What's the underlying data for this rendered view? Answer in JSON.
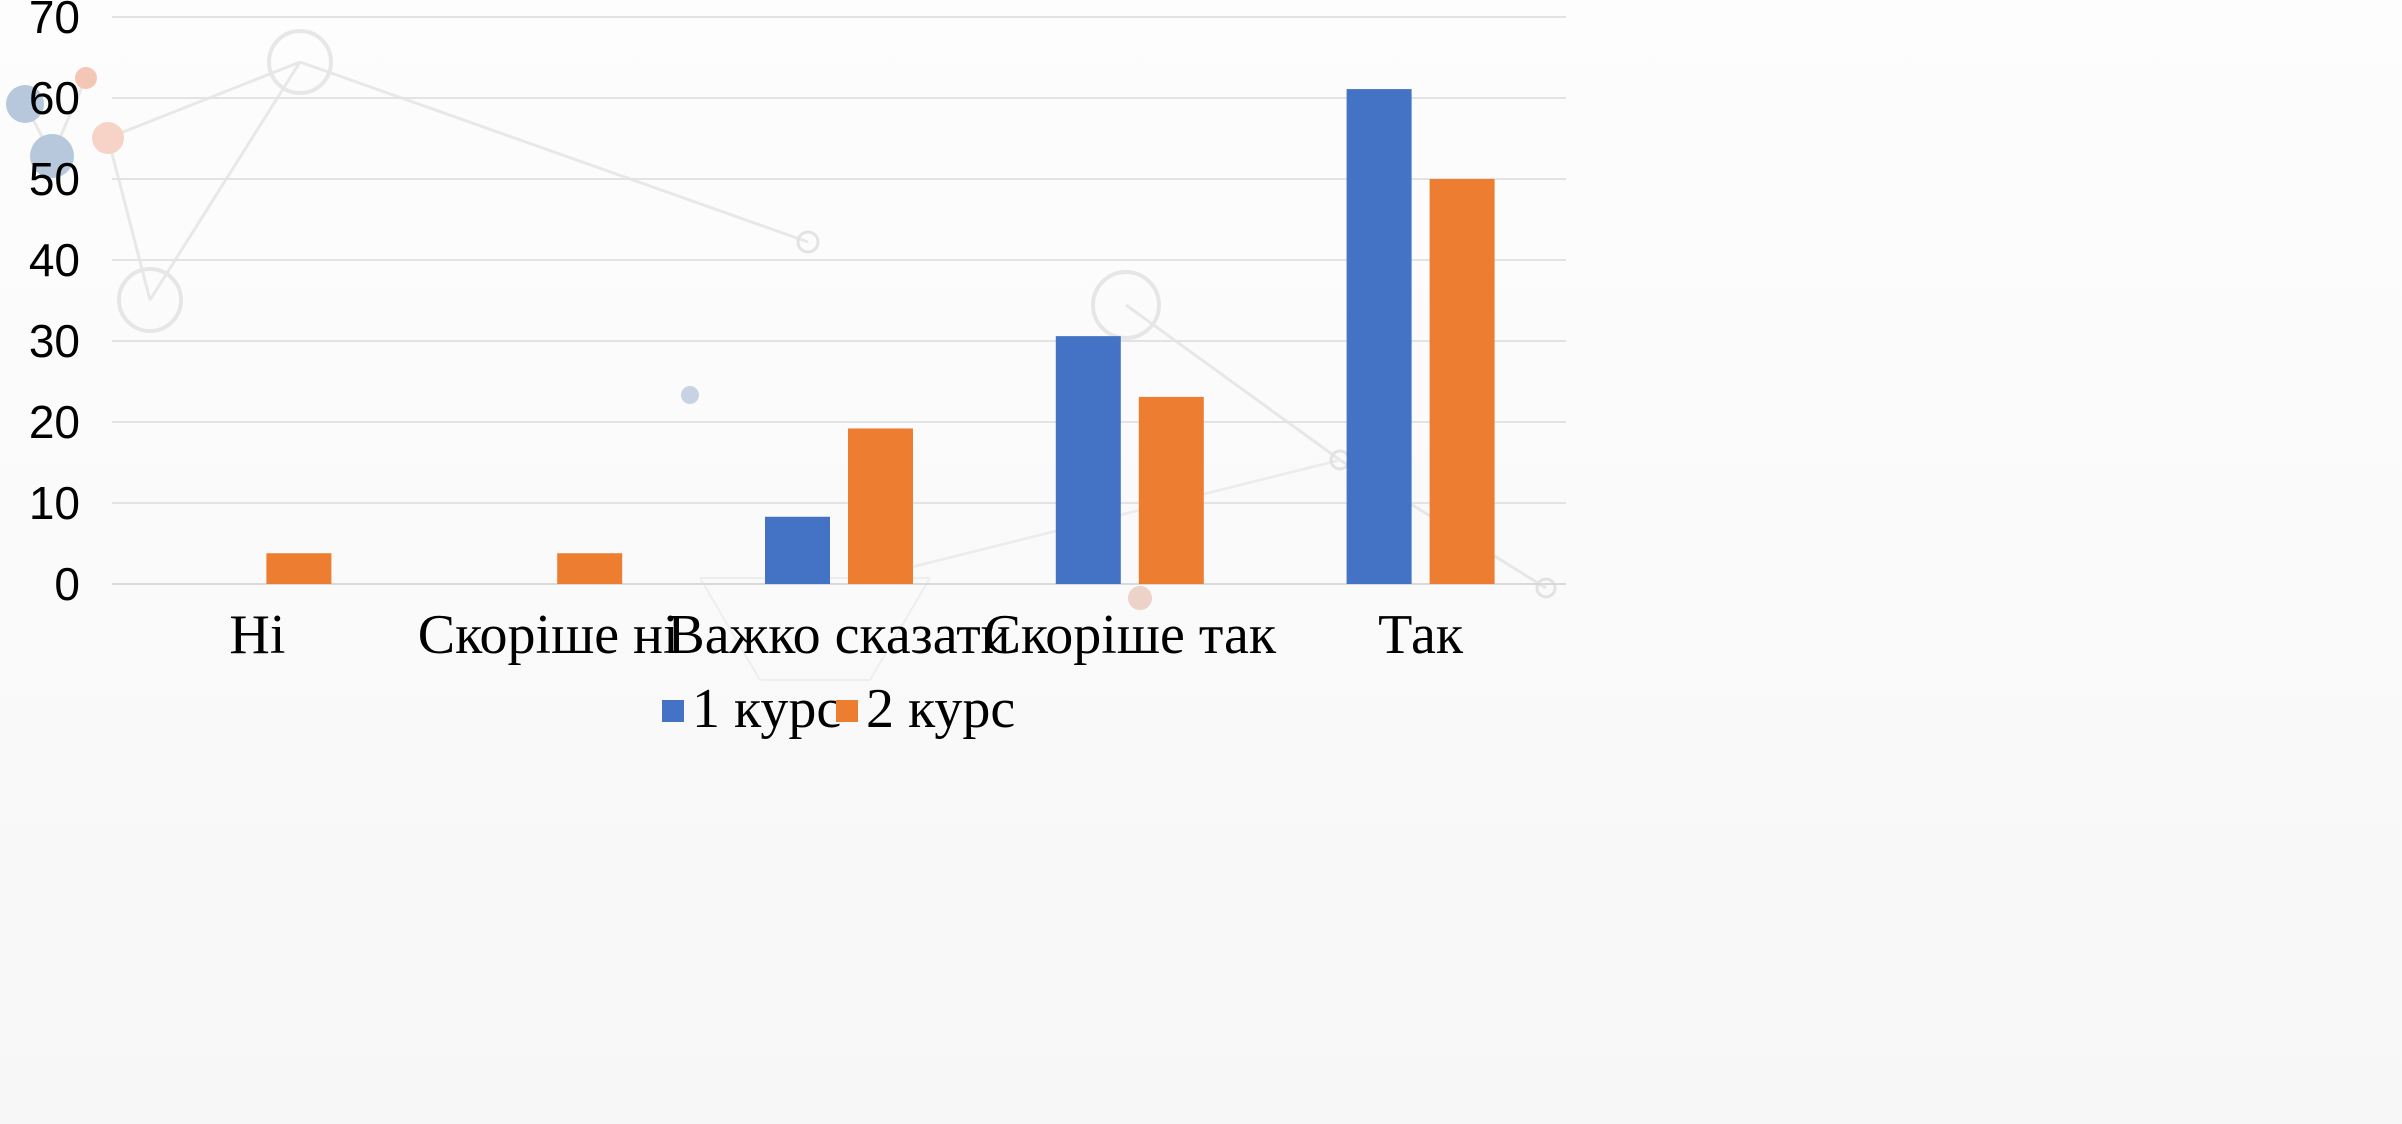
{
  "chart_data": {
    "type": "bar",
    "categories": [
      "Ні",
      "Скоріше ні",
      "Важко сказати",
      "Скоріше так",
      "Так"
    ],
    "series": [
      {
        "name": "1 курс",
        "color": "#4472C4",
        "values": [
          0,
          0,
          8.3,
          30.6,
          61.1
        ]
      },
      {
        "name": "2 курс",
        "color": "#ED7D31",
        "values": [
          3.8,
          3.8,
          19.2,
          23.1,
          50.0
        ]
      }
    ],
    "title": "",
    "xlabel": "",
    "ylabel": "",
    "ylim": [
      0,
      70
    ],
    "yticks": [
      0,
      10,
      20,
      30,
      40,
      50,
      60,
      70
    ],
    "grid": true,
    "legend": "bottom"
  }
}
